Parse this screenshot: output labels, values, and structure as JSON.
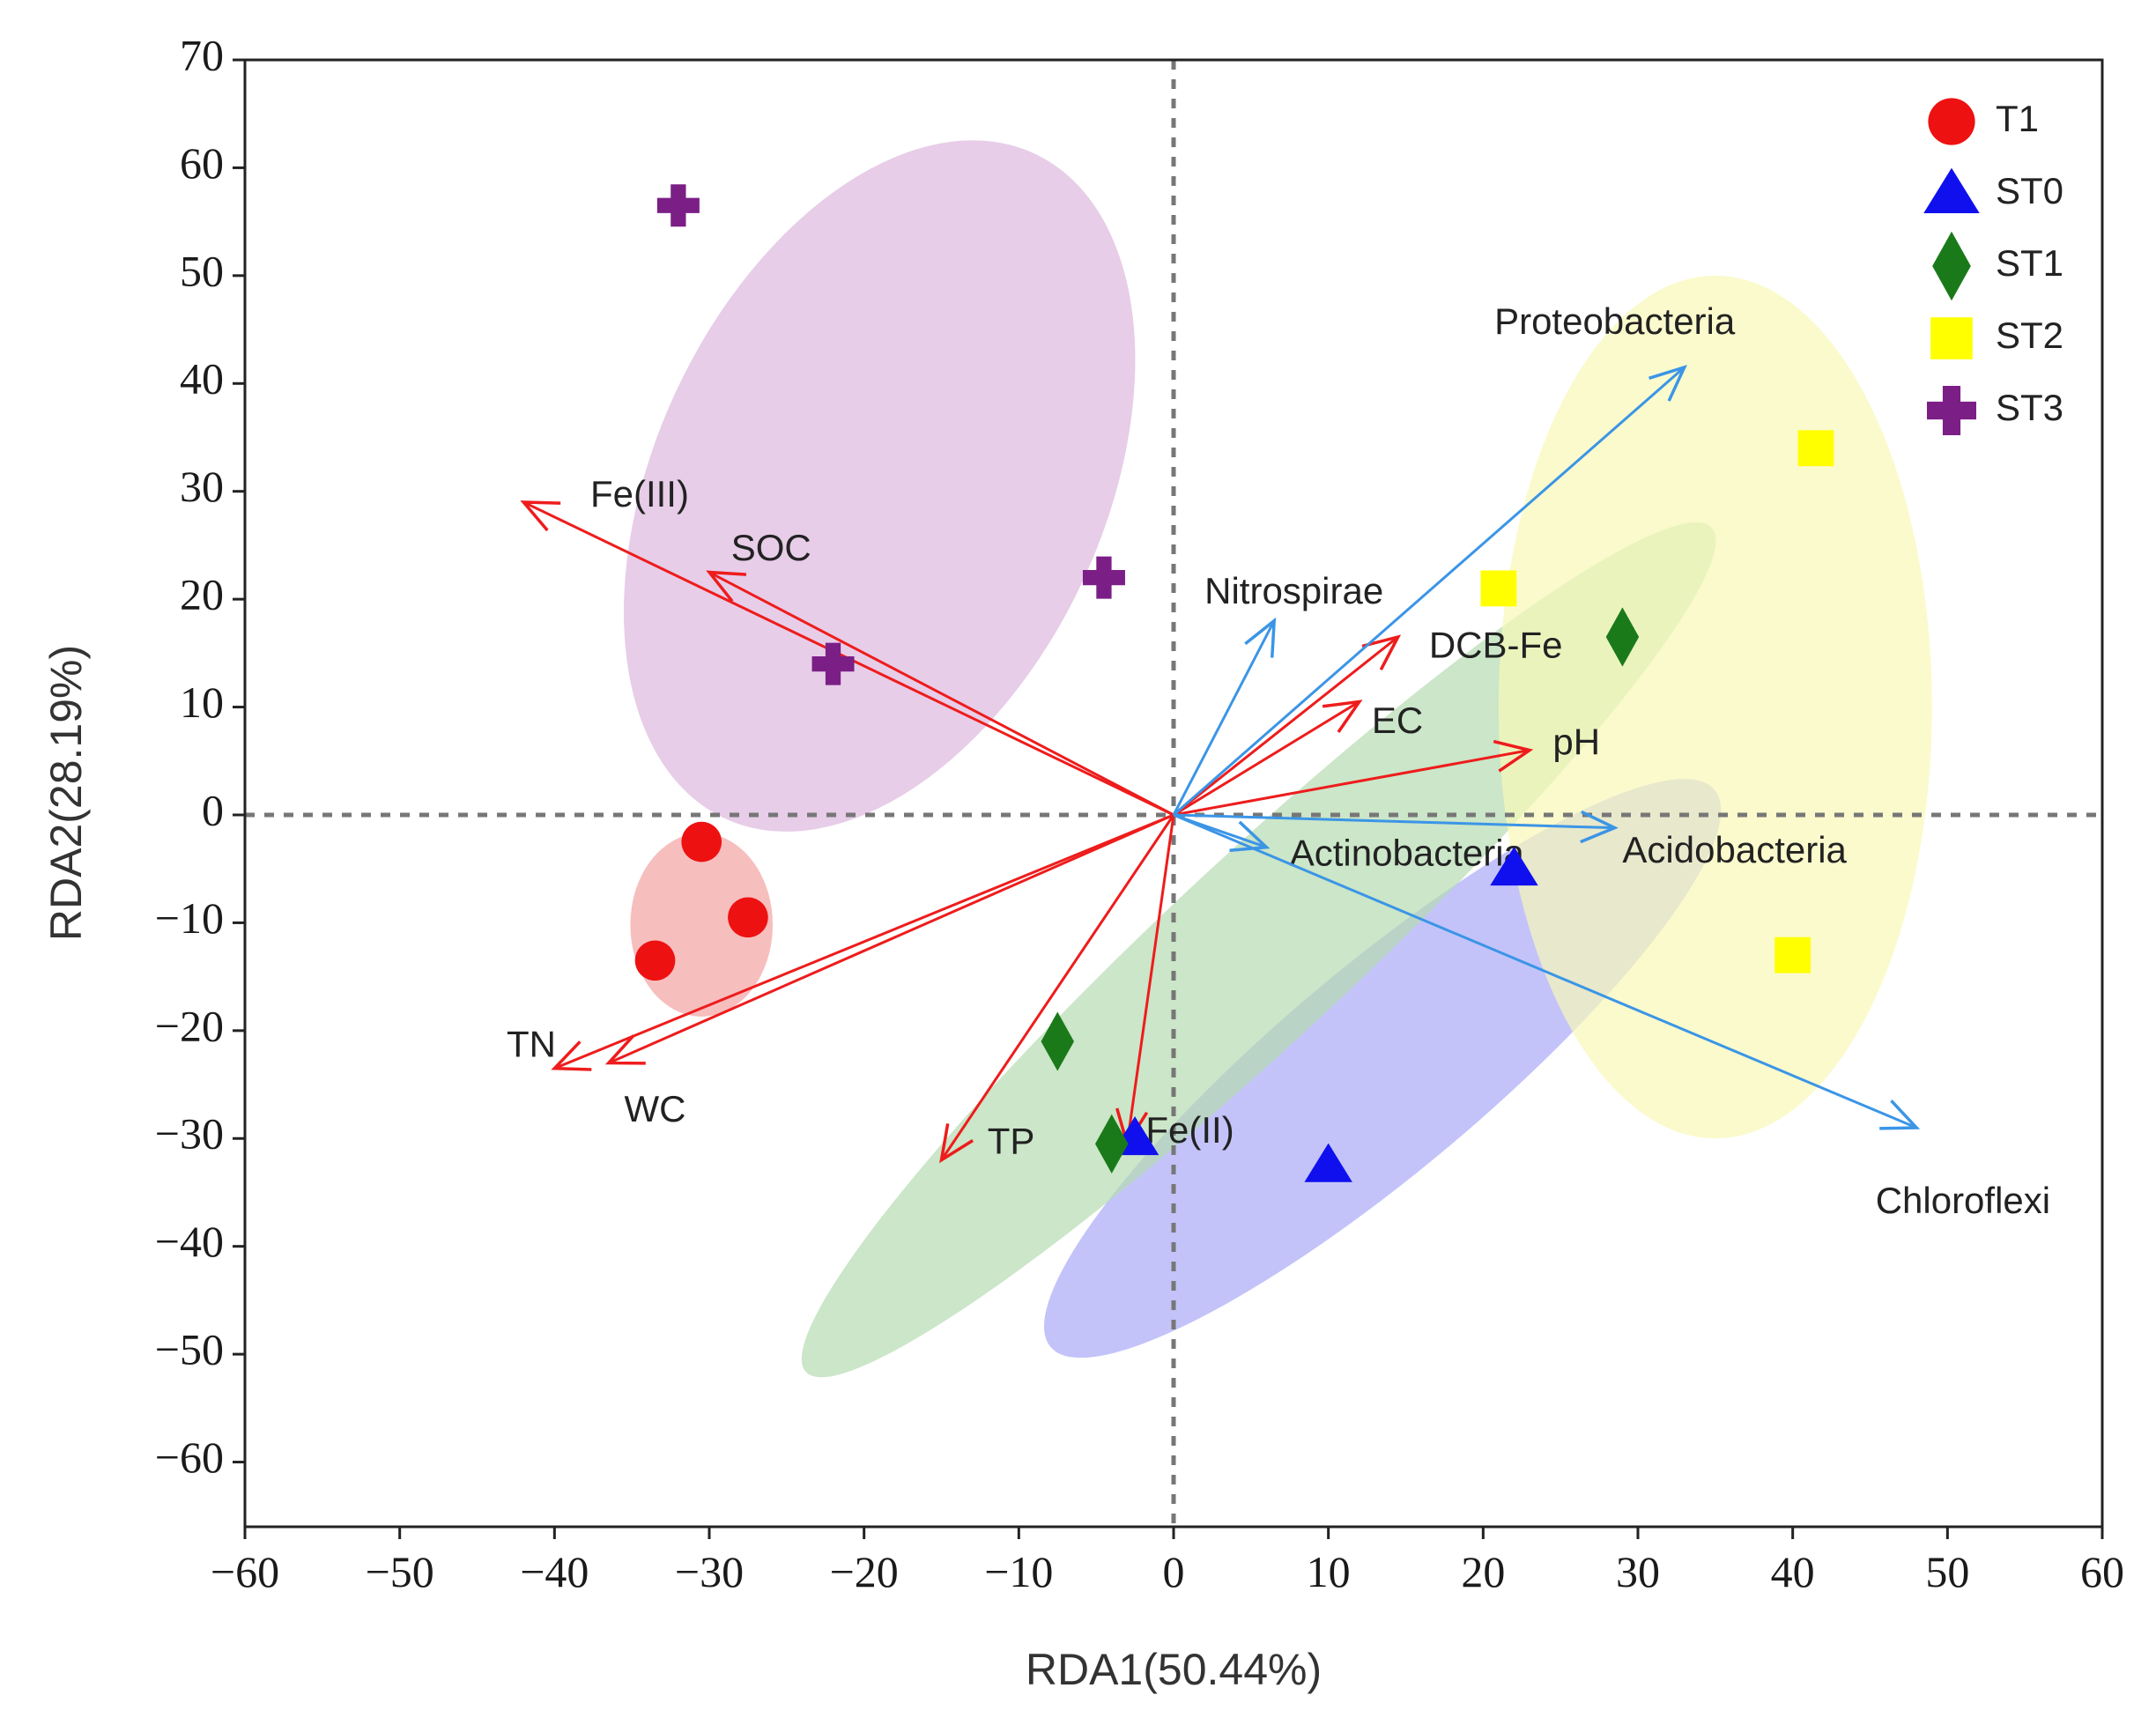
{
  "chart_data": {
    "type": "scatter",
    "subtype": "RDA biplot",
    "xlabel": "RDA1(50.44%)",
    "ylabel": "RDA2(28.19%)",
    "xlim": [
      -60,
      60
    ],
    "ylim": [
      -66,
      70
    ],
    "xticks": [
      -60,
      -50,
      -40,
      -30,
      -20,
      -10,
      0,
      10,
      20,
      30,
      40,
      50,
      60
    ],
    "yticks": [
      -60,
      -50,
      -40,
      -30,
      -20,
      -10,
      0,
      10,
      20,
      30,
      40,
      50,
      60,
      70
    ],
    "xtick_labels": [
      "−60",
      "−50",
      "−40",
      "−30",
      "−20",
      "−10",
      "0",
      "10",
      "20",
      "30",
      "40",
      "50",
      "60"
    ],
    "ytick_labels": [
      "−60",
      "−50",
      "−40",
      "−30",
      "−20",
      "−10",
      "0",
      "10",
      "20",
      "30",
      "40",
      "50",
      "60",
      "70"
    ],
    "zero_lines": true,
    "legend_position": "top-right",
    "groups": [
      {
        "name": "T1",
        "marker": "circle",
        "color": "#ee1111",
        "ellipse_color": "#f4a3a3",
        "ellipse": {
          "cx": -30.5,
          "cy": -10.2,
          "rx": 4.6,
          "ry": 8.5,
          "angle": 0
        },
        "points": [
          [
            -30.5,
            -2.5
          ],
          [
            -27.5,
            -9.5
          ],
          [
            -33.5,
            -13.5
          ]
        ]
      },
      {
        "name": "ST0",
        "marker": "triangle",
        "color": "#1010ee",
        "ellipse_color": "#aaaaf8",
        "ellipse": {
          "cx": 13.5,
          "cy": -23.5,
          "rx": 28,
          "ry": 9.5,
          "angle": 40
        },
        "points": [
          [
            22,
            -5
          ],
          [
            -2.5,
            -30
          ],
          [
            10,
            -32.5
          ]
        ]
      },
      {
        "name": "ST1",
        "marker": "diamond",
        "color": "#1a7a1a",
        "ellipse_color": "#b5dbb0",
        "ellipse": {
          "cx": 5.5,
          "cy": -12.5,
          "rx": 40,
          "ry": 8.5,
          "angle": 43
        },
        "points": [
          [
            29,
            16.5
          ],
          [
            -7.5,
            -21
          ],
          [
            -4,
            -30.5
          ]
        ]
      },
      {
        "name": "ST2",
        "marker": "square",
        "color": "#ffff00",
        "ellipse_color": "#f8f8b8",
        "ellipse": {
          "cx": 35,
          "cy": 10,
          "rx": 14,
          "ry": 40,
          "angle": 0
        },
        "points": [
          [
            21,
            21
          ],
          [
            41.5,
            34
          ],
          [
            40,
            -13
          ]
        ]
      },
      {
        "name": "ST3",
        "marker": "cross",
        "color": "#7b1f86",
        "ellipse_color": "#ddb8de",
        "ellipse": {
          "cx": -19,
          "cy": 30.5,
          "rx": 14.5,
          "ry": 34,
          "angle": -25
        },
        "points": [
          [
            -32,
            56.5
          ],
          [
            -4.5,
            22
          ],
          [
            -22,
            14
          ]
        ]
      }
    ],
    "env_arrows": [
      {
        "name": "Fe(III)",
        "x": -42,
        "y": 29,
        "label_x": -34.5,
        "label_y": 29.5,
        "anchor": "middle"
      },
      {
        "name": "SOC",
        "x": -30,
        "y": 22.5,
        "label_x": -26,
        "label_y": 24.5,
        "anchor": "middle"
      },
      {
        "name": "DCB-Fe",
        "x": 14.5,
        "y": 16.5,
        "label_x": 16.5,
        "label_y": 15.5,
        "anchor": "start"
      },
      {
        "name": "EC",
        "x": 12,
        "y": 10.5,
        "label_x": 12.8,
        "label_y": 8.5,
        "anchor": "start"
      },
      {
        "name": "pH",
        "x": 23,
        "y": 6,
        "label_x": 24.5,
        "label_y": 6.5,
        "anchor": "start"
      },
      {
        "name": "TN",
        "x": -40,
        "y": -23.5,
        "label_x": -41.5,
        "label_y": -21.5,
        "anchor": "middle"
      },
      {
        "name": "WC",
        "x": -36.5,
        "y": -23,
        "label_x": -33.5,
        "label_y": -27.5,
        "anchor": "middle"
      },
      {
        "name": "TP",
        "x": -15,
        "y": -32,
        "label_x": -10.5,
        "label_y": -30.5,
        "anchor": "middle"
      },
      {
        "name": "Fe(II)",
        "x": -3,
        "y": -30.5,
        "label_x": -1.8,
        "label_y": -29.5,
        "anchor": "start"
      }
    ],
    "species_arrows": [
      {
        "name": "Proteobacteria",
        "x": 33,
        "y": 41.5,
        "label_x": 28.5,
        "label_y": 45.5,
        "anchor": "middle"
      },
      {
        "name": "Nitrospirae",
        "x": 6.5,
        "y": 18,
        "label_x": 2,
        "label_y": 20.5,
        "anchor": "start"
      },
      {
        "name": "Actinobacteria",
        "x": 6,
        "y": -3,
        "label_x": 7.5,
        "label_y": -3.8,
        "anchor": "start"
      },
      {
        "name": "Acidobacteria",
        "x": 28.5,
        "y": -1.2,
        "label_x": 29,
        "label_y": -3.5,
        "anchor": "start"
      },
      {
        "name": "Chloroflexi",
        "x": 48,
        "y": -29,
        "label_x": 51,
        "label_y": -36,
        "anchor": "middle"
      }
    ],
    "env_arrow_color": "#ee1c1c",
    "species_arrow_color": "#3b95e6"
  }
}
